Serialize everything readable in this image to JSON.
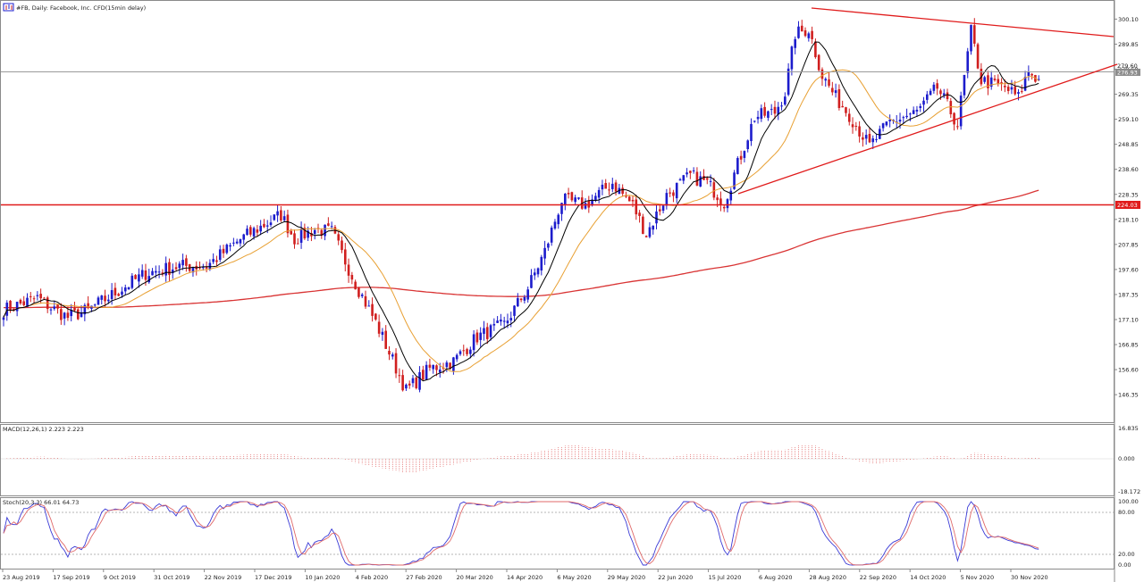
{
  "chart_data": [
    {
      "type": "candlestick",
      "title": "#FB, Daily: Facebook, Inc. CFD(15min delay)",
      "ylim": [
        138,
        305
      ],
      "yticks": [
        "300.10",
        "289.85",
        "279.60",
        "269.35",
        "259.10",
        "248.85",
        "238.60",
        "228.35",
        "218.10",
        "207.85",
        "197.60",
        "187.35",
        "177.10",
        "166.85",
        "156.60",
        "146.35"
      ],
      "current_price": "276.93",
      "overlay_price_label": "279.60",
      "horizontal_level": "224.03",
      "x_labels": [
        "23 Aug 2019",
        "17 Sep 2019",
        "9 Oct 2019",
        "31 Oct 2019",
        "22 Nov 2019",
        "17 Dec 2019",
        "10 Jan 2020",
        "4 Feb 2020",
        "27 Feb 2020",
        "20 Mar 2020",
        "14 Apr 2020",
        "6 May 2020",
        "29 May 2020",
        "22 Jun 2020",
        "15 Jul 2020",
        "6 Aug 2020",
        "28 Aug 2020",
        "22 Sep 2020",
        "14 Oct 2020",
        "5 Nov 2020",
        "30 Nov 2020"
      ],
      "close_anchors": [
        [
          0,
          181
        ],
        [
          10,
          186
        ],
        [
          14,
          182
        ],
        [
          19,
          178
        ],
        [
          25,
          181
        ],
        [
          33,
          188
        ],
        [
          42,
          196
        ],
        [
          52,
          199
        ],
        [
          60,
          199
        ],
        [
          70,
          210
        ],
        [
          82,
          220
        ],
        [
          86,
          210
        ],
        [
          92,
          214
        ],
        [
          97,
          213
        ],
        [
          104,
          192
        ],
        [
          110,
          176
        ],
        [
          119,
          148
        ],
        [
          126,
          157
        ],
        [
          133,
          160
        ],
        [
          140,
          170
        ],
        [
          148,
          175
        ],
        [
          155,
          190
        ],
        [
          160,
          205
        ],
        [
          165,
          226
        ],
        [
          172,
          224
        ],
        [
          180,
          233
        ],
        [
          186,
          224
        ],
        [
          190,
          212
        ],
        [
          196,
          228
        ],
        [
          203,
          236
        ],
        [
          208,
          233
        ],
        [
          213,
          225
        ],
        [
          222,
          260
        ],
        [
          228,
          262
        ],
        [
          231,
          270
        ],
        [
          234,
          294
        ],
        [
          238,
          296
        ],
        [
          242,
          277
        ],
        [
          246,
          268
        ],
        [
          250,
          261
        ],
        [
          256,
          248
        ],
        [
          262,
          258
        ],
        [
          270,
          262
        ],
        [
          276,
          272
        ],
        [
          282,
          257
        ],
        [
          286,
          295
        ],
        [
          289,
          275
        ],
        [
          296,
          272
        ],
        [
          300,
          268
        ],
        [
          303,
          279
        ],
        [
          306,
          275
        ]
      ],
      "colors": {
        "up": "#1c1ccc",
        "down": "#d01f1f",
        "ma_fast": "#000000",
        "ma_mid": "#e8a033",
        "ma_slow": "#d93434",
        "level": "#e01b1b",
        "macd": "#e06060",
        "stoch_main": "#3a3ad6",
        "stoch_signal": "#e06a6a"
      },
      "macd": {
        "label": "MACD(12,26,1) 2.223 2.223",
        "ticks": [
          "16.835",
          "0.000",
          "-18.172"
        ]
      },
      "stochastic": {
        "label": "Stoch(20,3,3) 66.01 64.73",
        "ticks": [
          "100.00",
          "80.00",
          "20.00",
          "0.00"
        ]
      }
    }
  ]
}
